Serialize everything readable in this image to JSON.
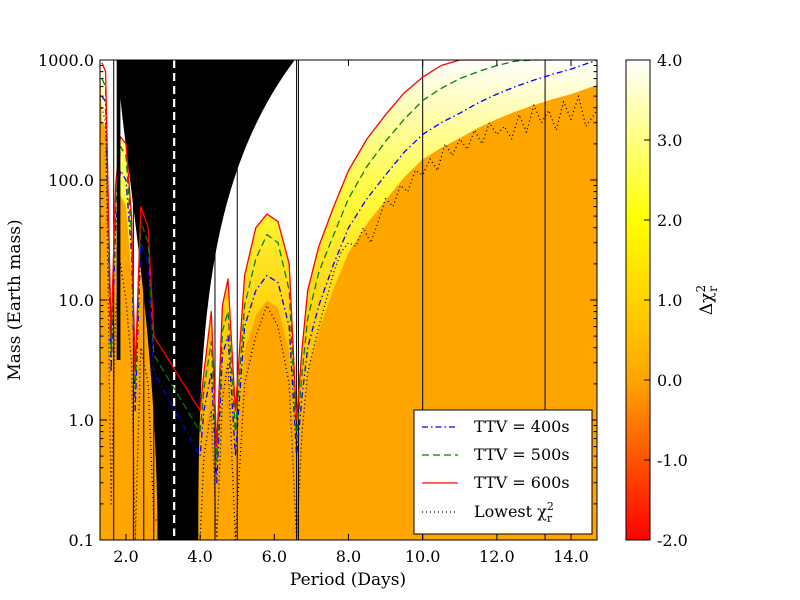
{
  "chart_data": {
    "type": "heatmap",
    "title": "",
    "xlabel": "Period (Days)",
    "ylabel": "Mass (Earth mass)",
    "xlim": [
      1.3,
      14.7
    ],
    "ylim": [
      0.1,
      1000.0
    ],
    "yscale": "log",
    "x_ticks": [
      2.0,
      4.0,
      6.0,
      8.0,
      10.0,
      12.0,
      14.0
    ],
    "x_tick_labels": [
      "2.0",
      "4.0",
      "6.0",
      "8.0",
      "10.0",
      "12.0",
      "14.0"
    ],
    "y_ticks": [
      0.1,
      1.0,
      10.0,
      100.0,
      1000.0
    ],
    "y_tick_labels": [
      "0.1",
      "1.0",
      "10.0",
      "100.0",
      "1000.0"
    ],
    "colorbar": {
      "label": "Δχ²_r",
      "label_main": "Δχ",
      "label_sup": "2",
      "label_sub": "r",
      "range": [
        -2.0,
        4.0
      ],
      "ticks": [
        -2.0,
        -1.0,
        0.0,
        1.0,
        2.0,
        3.0,
        4.0
      ],
      "tick_labels": [
        "-2.0",
        "-1.0",
        "0.0",
        "1.0",
        "2.0",
        "3.0",
        "4.0"
      ],
      "colormap": "hot-autumn",
      "colors": [
        "#ff0000",
        "#ffa500",
        "#ffff00",
        "#ffffff"
      ]
    },
    "background_value": 0.0,
    "background_color": "#ffa500",
    "unstable_region": {
      "description": "black excluded region",
      "color": "#000000",
      "x_at_bottom": [
        2.85,
        3.95
      ],
      "x_at_top": [
        1.75,
        6.55
      ],
      "spike_x": [
        1.75,
        1.85
      ]
    },
    "transiting_planet_period": 3.3,
    "series": [
      {
        "name": "TTV = 400s",
        "style": "dashdot",
        "color": "#0000ff",
        "x": [
          1.35,
          1.45,
          1.6,
          1.72,
          1.85,
          2.0,
          2.15,
          2.25,
          2.4,
          2.6,
          2.75,
          4.0,
          4.1,
          4.3,
          4.45,
          4.6,
          4.75,
          4.95,
          5.2,
          5.5,
          5.8,
          6.1,
          6.4,
          6.6,
          6.75,
          6.9,
          7.2,
          7.6,
          8.0,
          8.5,
          9.0,
          9.5,
          10.0,
          10.5,
          11.0,
          11.5,
          12.0,
          12.5,
          13.0,
          13.5,
          14.0,
          14.7
        ],
        "y": [
          500,
          450,
          2.5,
          40,
          120,
          100,
          25,
          1.2,
          30,
          20,
          2.5,
          0.5,
          1.2,
          2.5,
          0.3,
          3.5,
          5,
          0.5,
          6,
          12,
          16,
          14,
          6,
          0.5,
          1.6,
          4,
          9,
          20,
          40,
          70,
          110,
          170,
          240,
          300,
          360,
          440,
          520,
          600,
          680,
          760,
          840,
          1000
        ]
      },
      {
        "name": "TTV = 500s",
        "style": "dashed",
        "color": "#008000",
        "x": [
          1.35,
          1.45,
          1.6,
          1.72,
          1.85,
          2.0,
          2.15,
          2.25,
          2.4,
          2.6,
          2.75,
          4.0,
          4.1,
          4.3,
          4.45,
          4.6,
          4.75,
          4.95,
          5.2,
          5.5,
          5.8,
          6.1,
          6.4,
          6.6,
          6.75,
          6.9,
          7.2,
          7.6,
          8.0,
          8.5,
          9.0,
          9.5,
          10.0,
          10.5,
          11.0,
          11.5,
          12.0,
          12.5,
          13.0,
          13.5
        ],
        "y": [
          700,
          600,
          3.5,
          60,
          190,
          160,
          35,
          1.8,
          45,
          30,
          3.5,
          0.8,
          1.8,
          4.5,
          0.45,
          5.5,
          8,
          0.8,
          9,
          22,
          35,
          30,
          12,
          0.7,
          2.5,
          7,
          17,
          35,
          70,
          130,
          210,
          320,
          460,
          580,
          700,
          800,
          900,
          980,
          1000,
          1000
        ]
      },
      {
        "name": "TTV = 600s",
        "style": "solid",
        "color": "#ff0000",
        "x": [
          1.35,
          1.45,
          1.6,
          1.72,
          1.85,
          2.0,
          2.15,
          2.25,
          2.4,
          2.6,
          2.75,
          4.0,
          4.1,
          4.3,
          4.45,
          4.6,
          4.75,
          4.95,
          5.2,
          5.5,
          5.8,
          6.1,
          6.4,
          6.6,
          6.75,
          6.9,
          7.2,
          7.6,
          8.0,
          8.5,
          9.0,
          9.5,
          10.0,
          10.5,
          11.0,
          11.5,
          12.0
        ],
        "y": [
          950,
          800,
          5,
          90,
          230,
          200,
          50,
          2.5,
          60,
          40,
          5,
          1.2,
          2.5,
          8,
          0.6,
          9,
          15,
          1.2,
          16,
          40,
          52,
          45,
          20,
          1.0,
          4,
          12,
          28,
          60,
          120,
          220,
          350,
          530,
          720,
          900,
          1000,
          1000,
          1000
        ]
      },
      {
        "name": "Lowest χ²_r",
        "label_main": "Lowest χ",
        "label_sup": "2",
        "label_sub": "r",
        "style": "dotted",
        "color": "#000000",
        "x": [
          1.35,
          1.45,
          1.6,
          1.72,
          1.85,
          2.0,
          2.15,
          2.25,
          2.4,
          2.6,
          2.75,
          4.0,
          4.1,
          4.3,
          4.45,
          4.6,
          4.75,
          4.95,
          5.2,
          5.5,
          5.8,
          6.1,
          6.4,
          6.6,
          6.75,
          6.9,
          7.2,
          7.4,
          7.6,
          7.8,
          8.0,
          8.2,
          8.4,
          8.6,
          8.8,
          9.0,
          9.2,
          9.4,
          9.6,
          9.8,
          10.0,
          10.2,
          10.4,
          10.6,
          10.8,
          11.0,
          11.2,
          11.4,
          11.6,
          11.8,
          12.0,
          12.2,
          12.4,
          12.6,
          12.8,
          13.0,
          13.2,
          13.4,
          13.6,
          13.8,
          14.0,
          14.2,
          14.4,
          14.7
        ],
        "y": [
          400,
          300,
          0.2,
          8,
          20,
          10,
          3,
          0.1,
          4,
          2,
          0.15,
          0.1,
          0.5,
          1.2,
          0.1,
          1.5,
          3,
          0.1,
          2,
          5,
          9,
          6,
          2,
          0.1,
          0.8,
          2.5,
          6,
          10,
          17,
          25,
          30,
          28,
          40,
          30,
          45,
          70,
          60,
          90,
          80,
          120,
          110,
          150,
          120,
          200,
          160,
          220,
          180,
          260,
          200,
          300,
          240,
          280,
          220,
          350,
          250,
          420,
          300,
          380,
          260,
          450,
          320,
          500,
          280,
          380
        ]
      }
    ],
    "legend": {
      "placement": "lower-right",
      "entries": [
        "TTV = 400s",
        "TTV = 500s",
        "TTV = 600s",
        "Lowest χ²_r"
      ],
      "entries_text": [
        "TTV = 400s",
        "TTV = 500s",
        "TTV = 600s"
      ],
      "last_entry_main": "Lowest χ",
      "last_entry_sup": "2",
      "last_entry_sub": "r"
    }
  }
}
